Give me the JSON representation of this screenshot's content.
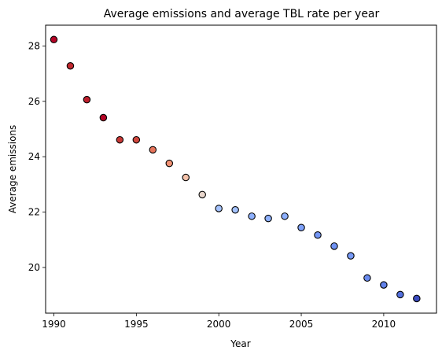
{
  "chart_data": {
    "type": "scatter",
    "title": "Average emissions and average TBL rate per year",
    "xlabel": "Year",
    "ylabel": "Average emissions",
    "xlim": [
      1989.5,
      2013.2
    ],
    "ylim": [
      18.35,
      28.75
    ],
    "xticks": [
      1990,
      1995,
      2000,
      2005,
      2010
    ],
    "yticks": [
      20,
      22,
      24,
      26,
      28
    ],
    "grid": false,
    "colormap": "coolwarm",
    "edge_color": "#000000",
    "points": [
      {
        "x": 1990,
        "y": 28.23,
        "color": "#b40426"
      },
      {
        "x": 1991,
        "y": 27.28,
        "color": "#c0282f"
      },
      {
        "x": 1992,
        "y": 26.06,
        "color": "#bd1f2d"
      },
      {
        "x": 1993,
        "y": 25.41,
        "color": "#b40426"
      },
      {
        "x": 1994,
        "y": 24.61,
        "color": "#c83836"
      },
      {
        "x": 1995,
        "y": 24.61,
        "color": "#d0473d"
      },
      {
        "x": 1996,
        "y": 24.25,
        "color": "#e7745b"
      },
      {
        "x": 1997,
        "y": 23.76,
        "color": "#f29274"
      },
      {
        "x": 1998,
        "y": 23.25,
        "color": "#f5c2aa"
      },
      {
        "x": 1999,
        "y": 22.63,
        "color": "#e8d6cc"
      },
      {
        "x": 2000,
        "y": 22.13,
        "color": "#a5c3fe"
      },
      {
        "x": 2001,
        "y": 22.08,
        "color": "#a3c2fe"
      },
      {
        "x": 2002,
        "y": 21.85,
        "color": "#8db0fe"
      },
      {
        "x": 2003,
        "y": 21.77,
        "color": "#8fb1fe"
      },
      {
        "x": 2004,
        "y": 21.85,
        "color": "#8caffe"
      },
      {
        "x": 2005,
        "y": 21.44,
        "color": "#7ea1fa"
      },
      {
        "x": 2006,
        "y": 21.17,
        "color": "#7396f5"
      },
      {
        "x": 2007,
        "y": 20.77,
        "color": "#6f92f3"
      },
      {
        "x": 2008,
        "y": 20.42,
        "color": "#779af7"
      },
      {
        "x": 2009,
        "y": 19.62,
        "color": "#6a8bef"
      },
      {
        "x": 2010,
        "y": 19.37,
        "color": "#6282ea"
      },
      {
        "x": 2011,
        "y": 19.02,
        "color": "#5470de"
      },
      {
        "x": 2012,
        "y": 18.88,
        "color": "#3b4cc0"
      }
    ]
  }
}
